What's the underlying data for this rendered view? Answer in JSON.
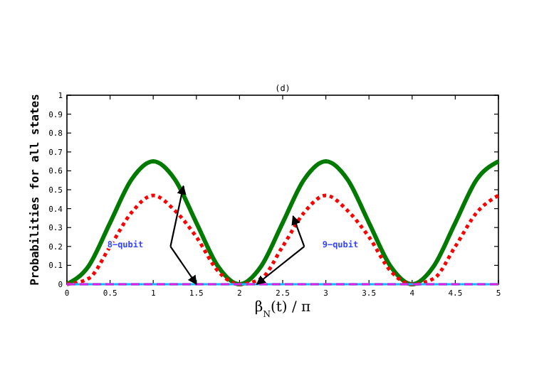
{
  "chart_data": {
    "type": "line",
    "title": "(d)",
    "xlabel": "β$_{N}$(t)  /  π",
    "ylabel": "Probabilities for all states",
    "x": [
      0,
      0.25,
      0.5,
      0.75,
      1,
      1.25,
      1.5,
      1.75,
      2,
      2.25,
      2.5,
      2.75,
      3,
      3.25,
      3.5,
      3.75,
      4,
      4.25,
      4.5,
      4.75,
      5
    ],
    "series": [
      {
        "color": "#007a00",
        "line_style": "solid",
        "values": [
          0,
          0.095,
          0.325,
          0.555,
          0.65,
          0.555,
          0.325,
          0.095,
          0,
          0.095,
          0.325,
          0.555,
          0.65,
          0.555,
          0.325,
          0.095,
          0,
          0.095,
          0.325,
          0.555,
          0.65
        ]
      },
      {
        "color": "#ff0000",
        "line_style": "dotted",
        "values": [
          0,
          0.03,
          0.2,
          0.38,
          0.47,
          0.39,
          0.25,
          0.07,
          0,
          0.03,
          0.2,
          0.38,
          0.47,
          0.39,
          0.25,
          0.07,
          0,
          0.03,
          0.2,
          0.38,
          0.47
        ]
      },
      {
        "color": "#00c0ff",
        "line_style": "solid",
        "values": [
          0,
          0,
          0,
          0,
          0,
          0,
          0,
          0,
          0,
          0,
          0,
          0,
          0,
          0,
          0,
          0,
          0,
          0,
          0,
          0,
          0
        ]
      },
      {
        "color": "#e020e0",
        "line_style": "dashed",
        "values": [
          0,
          0,
          0,
          0,
          0,
          0,
          0,
          0,
          0,
          0,
          0,
          0,
          0,
          0,
          0,
          0,
          0,
          0,
          0,
          0,
          0
        ]
      }
    ],
    "xlim": [
      0,
      5
    ],
    "xticks": [
      0,
      0.5,
      1,
      1.5,
      2,
      2.5,
      3,
      3.5,
      4,
      4.5,
      5
    ],
    "ylim": [
      0,
      1
    ],
    "yticks": [
      0,
      0.1,
      0.2,
      0.3,
      0.4,
      0.5,
      0.6,
      0.7,
      0.8,
      0.9,
      1
    ],
    "grid": false,
    "marker": "none",
    "annotations": [
      "8−qubit",
      "9−qubit"
    ]
  }
}
